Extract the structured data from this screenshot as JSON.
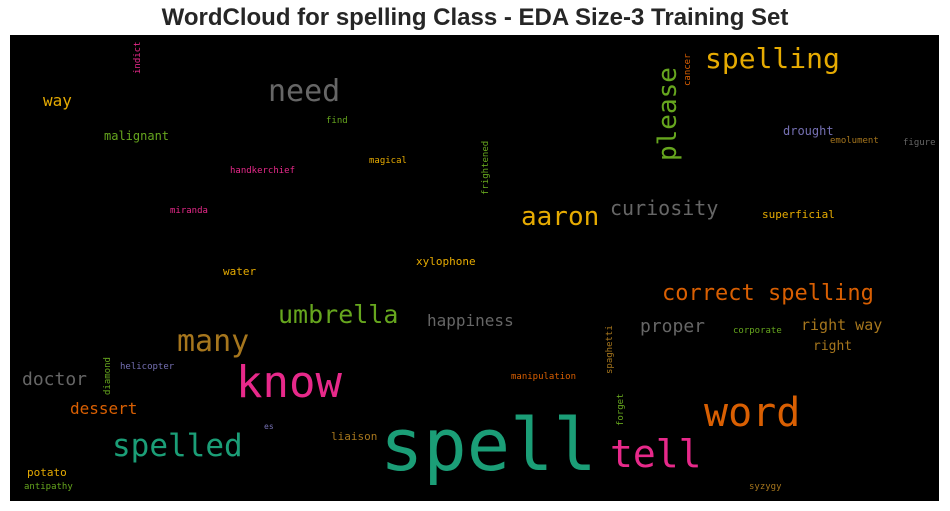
{
  "chart_data": {
    "type": "wordcloud",
    "title": "WordCloud for spelling Class - EDA Size-3 Training Set",
    "colors": {
      "background": "#000000",
      "palette": [
        "#1b9e77",
        "#d95f02",
        "#7570b3",
        "#e7298a",
        "#66a61e",
        "#e6ab02",
        "#a6761d",
        "#666666"
      ]
    },
    "words": [
      {
        "text": "spell",
        "color": "#1b9e77"
      },
      {
        "text": "know",
        "color": "#e7298a"
      },
      {
        "text": "word",
        "color": "#d95f02"
      },
      {
        "text": "tell",
        "color": "#e7298a"
      },
      {
        "text": "spelled",
        "color": "#1b9e77"
      },
      {
        "text": "many",
        "color": "#a6761d"
      },
      {
        "text": "need",
        "color": "#666666"
      },
      {
        "text": "spelling",
        "color": "#e6ab02"
      },
      {
        "text": "please",
        "color": "#66a61e",
        "vertical": true
      },
      {
        "text": "aaron",
        "color": "#e6ab02"
      },
      {
        "text": "umbrella",
        "color": "#66a61e"
      },
      {
        "text": "correct spelling",
        "color": "#d95f02"
      },
      {
        "text": "curiosity",
        "color": "#666666"
      },
      {
        "text": "happiness",
        "color": "#666666"
      },
      {
        "text": "proper",
        "color": "#666666"
      },
      {
        "text": "doctor",
        "color": "#666666"
      },
      {
        "text": "dessert",
        "color": "#d95f02"
      },
      {
        "text": "right way",
        "color": "#a6761d"
      },
      {
        "text": "right",
        "color": "#a6761d"
      },
      {
        "text": "way",
        "color": "#e6ab02"
      },
      {
        "text": "malignant",
        "color": "#66a61e"
      },
      {
        "text": "drought",
        "color": "#7570b3"
      },
      {
        "text": "superficial",
        "color": "#e6ab02"
      },
      {
        "text": "xylophone",
        "color": "#e6ab02"
      },
      {
        "text": "water",
        "color": "#e6ab02"
      },
      {
        "text": "potato",
        "color": "#e6ab02"
      },
      {
        "text": "liaison",
        "color": "#a6761d"
      },
      {
        "text": "antipathy",
        "color": "#66a61e"
      },
      {
        "text": "helicopter",
        "color": "#7570b3"
      },
      {
        "text": "handkerchief",
        "color": "#e7298a"
      },
      {
        "text": "miranda",
        "color": "#e7298a"
      },
      {
        "text": "magical",
        "color": "#e6ab02"
      },
      {
        "text": "find",
        "color": "#66a61e"
      },
      {
        "text": "emolument",
        "color": "#a6761d"
      },
      {
        "text": "figure",
        "color": "#666666"
      },
      {
        "text": "corporate",
        "color": "#66a61e"
      },
      {
        "text": "manipulation",
        "color": "#d95f02"
      },
      {
        "text": "syzygy",
        "color": "#a6761d"
      },
      {
        "text": "es",
        "color": "#7570b3"
      },
      {
        "text": "indict",
        "color": "#e7298a",
        "vertical": true
      },
      {
        "text": "cancer",
        "color": "#d95f02",
        "vertical": true
      },
      {
        "text": "frightened",
        "color": "#66a61e",
        "vertical": true
      },
      {
        "text": "spaghetti",
        "color": "#a6761d",
        "vertical": true
      },
      {
        "text": "forget",
        "color": "#66a61e",
        "vertical": true
      },
      {
        "text": "diamond",
        "color": "#66a61e",
        "vertical": true
      }
    ]
  }
}
